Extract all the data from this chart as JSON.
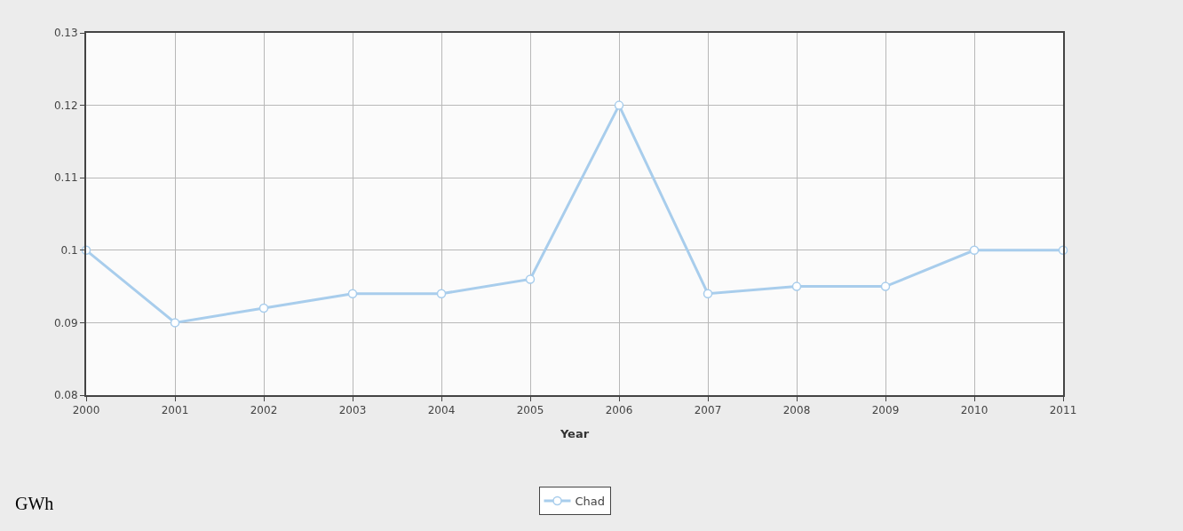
{
  "chart_data": {
    "type": "line",
    "xlabel": "Year",
    "x": [
      2000,
      2001,
      2002,
      2003,
      2004,
      2005,
      2006,
      2007,
      2008,
      2009,
      2010,
      2011
    ],
    "series": [
      {
        "name": "Chad",
        "color": "#a8cdec",
        "values": [
          0.1,
          0.09,
          0.092,
          0.094,
          0.094,
          0.096,
          0.12,
          0.094,
          0.095,
          0.095,
          0.1,
          0.1
        ]
      }
    ],
    "xlim": [
      2000,
      2011
    ],
    "xticks": [
      2000,
      2001,
      2002,
      2003,
      2004,
      2005,
      2006,
      2007,
      2008,
      2009,
      2010,
      2011
    ],
    "ylim": [
      0.08,
      0.13
    ],
    "yticks": [
      0.08,
      0.09,
      0.1,
      0.11,
      0.12,
      0.13
    ],
    "grid": true,
    "legend": "bottom",
    "marker": "circle",
    "line_style": "solid",
    "annotations": [
      "GWh"
    ]
  }
}
